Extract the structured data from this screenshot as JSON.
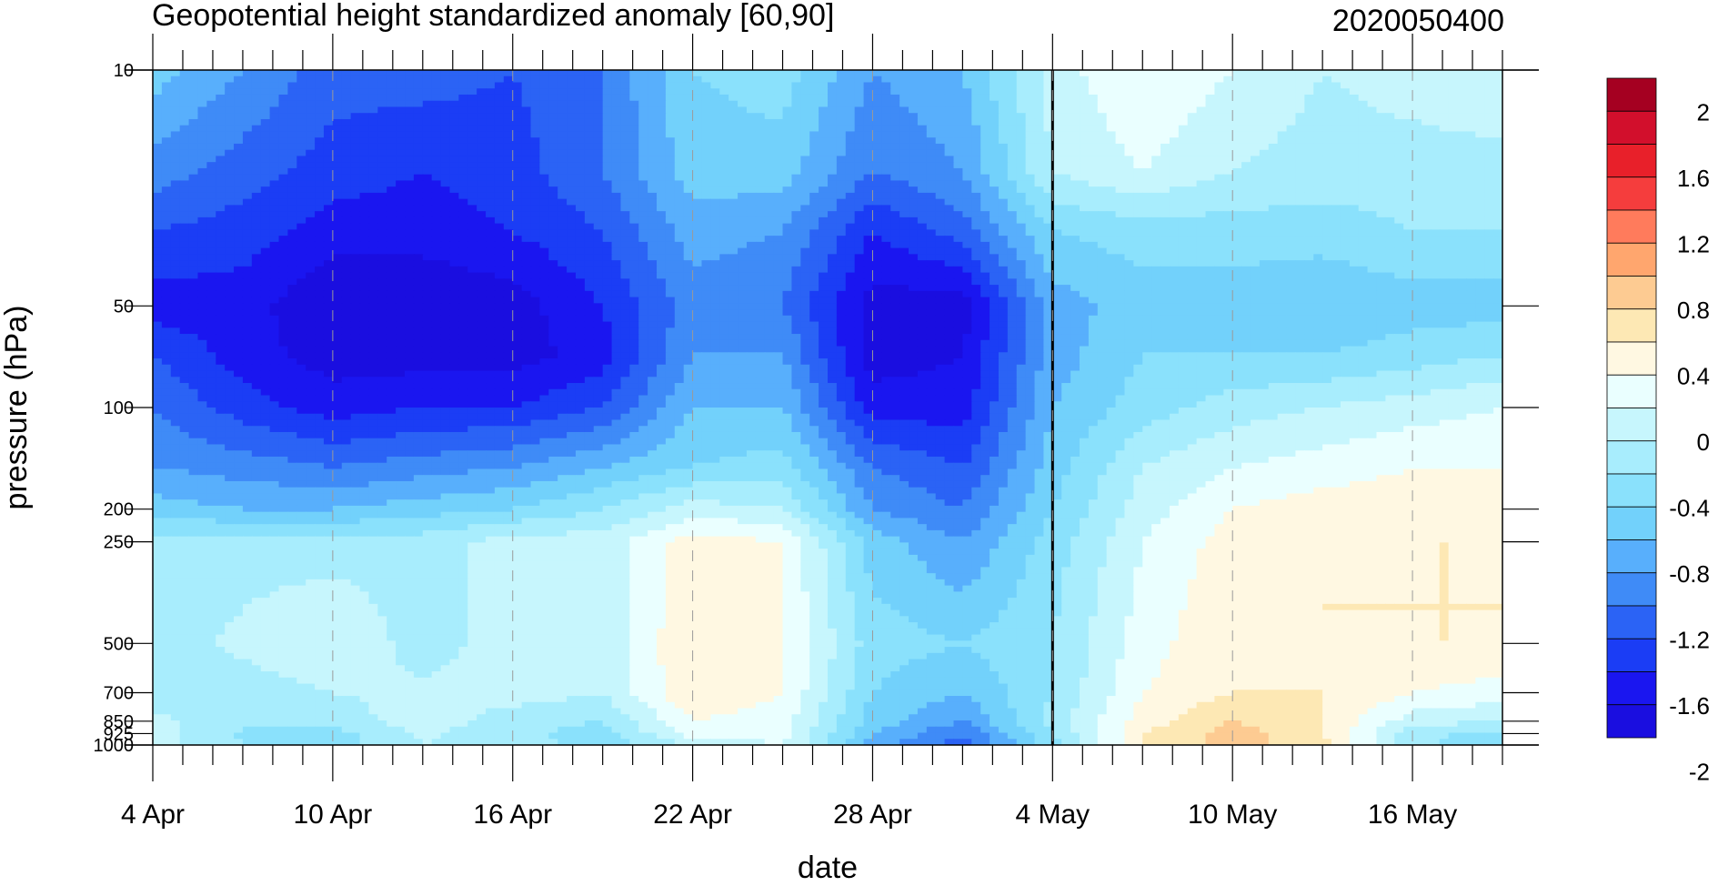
{
  "chart_data": {
    "type": "heatmap",
    "subtype": "filled-contour (time-pressure cross-section)",
    "title": "Geopotential height standardized anomaly [60,90]",
    "right_title": "2020050400",
    "xlabel": "date",
    "ylabel": "pressure (hPa)",
    "x_tick_labels": [
      "4 Apr",
      "10 Apr",
      "16 Apr",
      "22 Apr",
      "28 Apr",
      "4 May",
      "10 May",
      "16 May"
    ],
    "x_tick_day_index": [
      0,
      6,
      12,
      18,
      24,
      30,
      36,
      42
    ],
    "x_range_days": [
      0,
      45
    ],
    "y_tick_labels": [
      "10",
      "50",
      "100",
      "200",
      "250",
      "500",
      "700",
      "850",
      "925",
      "1000"
    ],
    "y_tick_values": [
      10,
      50,
      100,
      200,
      250,
      500,
      700,
      850,
      925,
      1000
    ],
    "y_scale": "log",
    "y_reversed": true,
    "y_range": [
      1000,
      10
    ],
    "reference_line_day": 30,
    "colorbar": {
      "labels": [
        "2",
        "1.6",
        "1.2",
        "0.8",
        "0.4",
        "0",
        "-0.4",
        "-0.8",
        "-1.2",
        "-1.6",
        "-2"
      ],
      "levels": [
        2.2,
        2.0,
        1.8,
        1.6,
        1.4,
        1.2,
        1.0,
        0.8,
        0.6,
        0.4,
        0.2,
        0.0,
        -0.2,
        -0.4,
        -0.6,
        -0.8,
        -1.0,
        -1.2,
        -1.4,
        -1.6,
        -1.8,
        -2.0,
        -2.2
      ],
      "colors": [
        "#a50021",
        "#d20f2c",
        "#e8202a",
        "#f53d3d",
        "#ff7b5c",
        "#ffa66e",
        "#fdcb92",
        "#fde8b4",
        "#fff8e2",
        "#eaffff",
        "#c7f6fd",
        "#a8edfd",
        "#8ae1fc",
        "#72d1fb",
        "#58affc",
        "#3f8bf7",
        "#2b63f5",
        "#1b3df5",
        "#1a16f0",
        "#1a0ee0"
      ]
    },
    "grid_days": [
      0,
      3,
      6,
      9,
      12,
      15,
      18,
      21,
      24,
      27,
      30,
      33,
      36,
      39,
      42,
      45
    ],
    "grid_pressures": [
      1000,
      925,
      850,
      700,
      500,
      250,
      200,
      150,
      100,
      70,
      50,
      30,
      20,
      10
    ],
    "values": [
      [
        0.1,
        -0.2,
        -0.3,
        0.0,
        -0.1,
        -0.3,
        0.0,
        0.2,
        -0.7,
        -1.1,
        -0.3,
        0.6,
        0.9,
        0.7,
        -0.15,
        -0.4
      ],
      [
        0.1,
        -0.25,
        -0.3,
        0.05,
        -0.15,
        -0.3,
        0.3,
        0.3,
        -0.6,
        -1.0,
        -0.2,
        0.6,
        0.9,
        0.6,
        -0.1,
        -0.3
      ],
      [
        0.05,
        -0.1,
        -0.1,
        0.1,
        -0.1,
        -0.2,
        0.4,
        0.3,
        -0.5,
        -0.8,
        -0.1,
        0.5,
        0.8,
        0.6,
        0.1,
        0.0
      ],
      [
        -0.1,
        -0.1,
        0.0,
        0.05,
        0.1,
        0.0,
        0.6,
        0.4,
        -0.4,
        -0.6,
        -0.2,
        0.4,
        0.6,
        0.6,
        0.4,
        0.3
      ],
      [
        -0.1,
        0.05,
        0.2,
        -0.1,
        0.1,
        0.05,
        0.6,
        0.4,
        -0.3,
        -0.4,
        -0.2,
        0.3,
        0.6,
        0.6,
        0.6,
        0.6
      ],
      [
        -0.1,
        -0.1,
        -0.1,
        -0.1,
        0.1,
        0.1,
        0.5,
        0.4,
        -0.5,
        -0.8,
        -0.3,
        0.2,
        0.5,
        0.6,
        0.6,
        0.6
      ],
      [
        -0.5,
        -0.6,
        -0.6,
        -0.5,
        -0.4,
        -0.2,
        0.1,
        0.0,
        -0.8,
        -1.0,
        -0.4,
        0.1,
        0.4,
        0.5,
        0.5,
        0.5
      ],
      [
        -0.8,
        -0.9,
        -1.0,
        -0.9,
        -0.8,
        -0.6,
        -0.4,
        -0.3,
        -1.0,
        -1.2,
        -0.5,
        0.0,
        0.2,
        0.3,
        0.4,
        0.4
      ],
      [
        -1.0,
        -1.3,
        -1.5,
        -1.4,
        -1.4,
        -1.2,
        -0.6,
        -0.6,
        -1.5,
        -1.5,
        -0.6,
        -0.3,
        -0.1,
        0.0,
        0.1,
        0.2
      ],
      [
        -1.2,
        -1.5,
        -1.7,
        -1.7,
        -1.7,
        -1.5,
        -0.8,
        -0.8,
        -1.7,
        -1.6,
        -0.7,
        -0.4,
        -0.4,
        -0.4,
        -0.3,
        -0.2
      ],
      [
        -1.5,
        -1.5,
        -1.8,
        -1.8,
        -1.7,
        -1.4,
        -0.9,
        -1.0,
        -1.7,
        -1.7,
        -0.7,
        -0.5,
        -0.5,
        -0.6,
        -0.5,
        -0.5
      ],
      [
        -1.2,
        -1.3,
        -1.5,
        -1.5,
        -1.4,
        -1.2,
        -0.7,
        -0.8,
        -1.4,
        -1.1,
        -0.4,
        -0.3,
        -0.3,
        -0.3,
        -0.2,
        -0.2
      ],
      [
        -0.9,
        -1.1,
        -1.3,
        -1.4,
        -1.3,
        -1.0,
        -0.5,
        -0.5,
        -1.0,
        -0.8,
        0.0,
        0.2,
        0.0,
        -0.1,
        -0.1,
        -0.1
      ],
      [
        -0.5,
        -0.8,
        -1.1,
        -1.1,
        -1.2,
        -1.0,
        -0.4,
        -0.3,
        -0.8,
        -0.6,
        0.1,
        0.4,
        0.2,
        0.0,
        0.1,
        0.2
      ]
    ]
  }
}
